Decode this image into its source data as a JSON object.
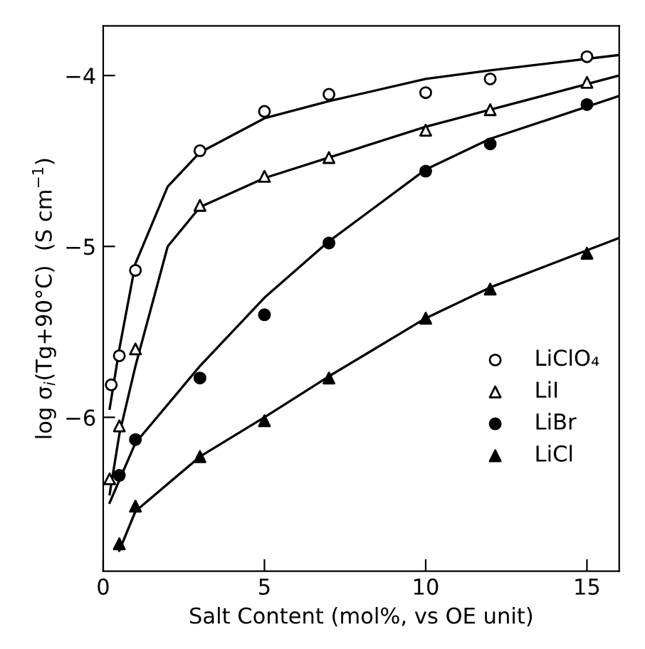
{
  "chart_data": {
    "type": "scatter",
    "xlabel": "Salt Content (mol%, vs OE unit)",
    "ylabel": "log σ$_{i}$(Tg+90°C)  (S cm$^{−1}$)",
    "xlim": [
      0,
      16
    ],
    "xticks": [
      0,
      5,
      10,
      15
    ],
    "ylim": [
      -6.9,
      -3.71
    ],
    "yticks": [
      {
        "value": -4,
        "label": "−4"
      },
      {
        "value": -5,
        "label": "−5"
      },
      {
        "value": -6,
        "label": "−6"
      }
    ],
    "grid": false,
    "legend": "right",
    "series": [
      {
        "name": "LiClO₄",
        "color": "#ffffff",
        "marker": "circle",
        "x": [
          0.25,
          0.5,
          1,
          3,
          5,
          7,
          10,
          12,
          15
        ],
        "values": [
          -5.81,
          -5.64,
          -5.14,
          -4.44,
          -4.21,
          -4.11,
          -4.1,
          -4.02,
          -3.89
        ]
      },
      {
        "name": "LiI",
        "color": "#ffffff",
        "marker": "triangle",
        "x": [
          0.2,
          0.5,
          1,
          3,
          5,
          7,
          10,
          12,
          15
        ],
        "values": [
          -6.36,
          -6.05,
          -5.6,
          -4.76,
          -4.59,
          -4.48,
          -4.32,
          -4.2,
          -4.04
        ]
      },
      {
        "name": "LiBr",
        "color": "#000000",
        "marker": "circle",
        "x": [
          0.5,
          1,
          3,
          5,
          7,
          10,
          12,
          15
        ],
        "values": [
          -6.34,
          -6.13,
          -5.77,
          -5.4,
          -4.98,
          -4.56,
          -4.4,
          -4.17
        ]
      },
      {
        "name": "LiCl",
        "color": "#000000",
        "marker": "triangle",
        "x": [
          0.5,
          1,
          3,
          5,
          7,
          10,
          12,
          15
        ],
        "values": [
          -6.74,
          -6.52,
          -6.23,
          -6.02,
          -5.77,
          -5.42,
          -5.25,
          -5.04
        ]
      },
      {
        "type": "line",
        "color": "#000000",
        "x": [
          0.2,
          0.5,
          1,
          2,
          3,
          5,
          7,
          10,
          12,
          16
        ],
        "values": [
          -5.95,
          -5.6,
          -5.1,
          -4.65,
          -4.45,
          -4.25,
          -4.15,
          -4.02,
          -3.97,
          -3.88
        ]
      },
      {
        "type": "line",
        "color": "#000000",
        "x": [
          0.2,
          0.5,
          1,
          2,
          3,
          5,
          7,
          10,
          12,
          16
        ],
        "values": [
          -6.45,
          -6.1,
          -5.7,
          -5.0,
          -4.77,
          -4.6,
          -4.48,
          -4.3,
          -4.2,
          -4.0
        ]
      },
      {
        "type": "line",
        "color": "#000000",
        "x": [
          0.2,
          1,
          3,
          5,
          7,
          10,
          12,
          16
        ],
        "values": [
          -6.5,
          -6.15,
          -5.7,
          -5.3,
          -4.97,
          -4.55,
          -4.37,
          -4.12
        ]
      },
      {
        "type": "line",
        "color": "#000000",
        "x": [
          0.5,
          1,
          3,
          5,
          7,
          10,
          12,
          16
        ],
        "values": [
          -6.78,
          -6.55,
          -6.23,
          -6.0,
          -5.76,
          -5.42,
          -5.24,
          -4.95
        ]
      }
    ]
  }
}
